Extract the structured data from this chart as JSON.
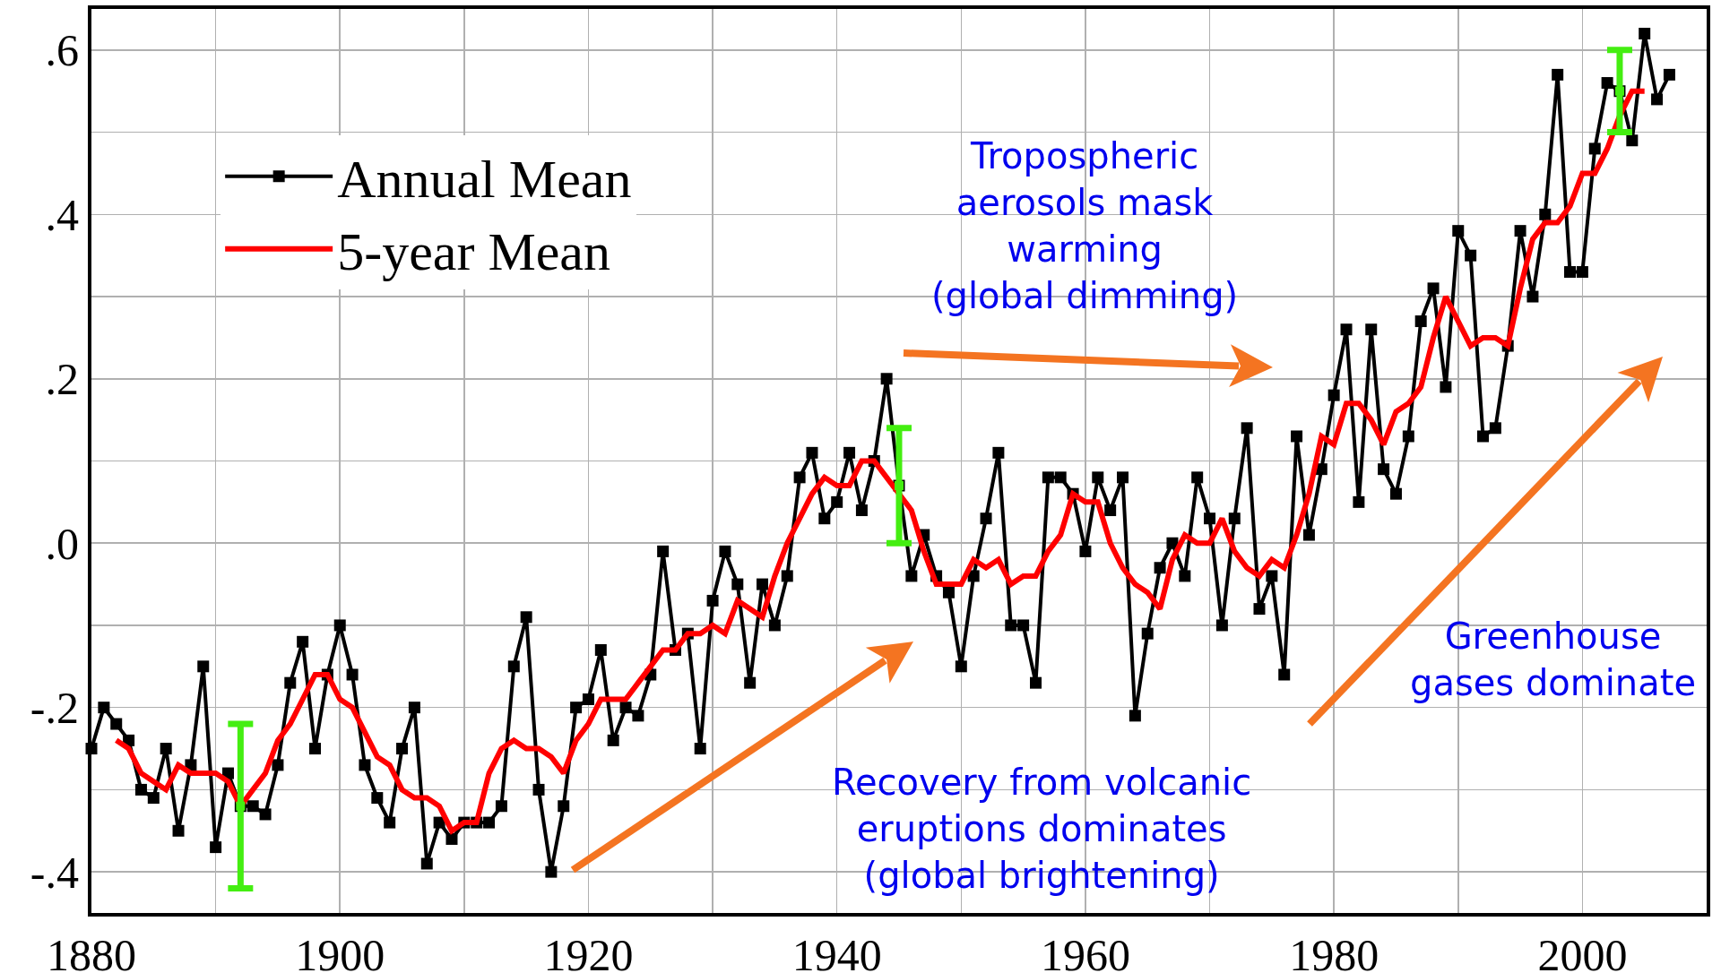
{
  "chart_data": {
    "type": "line",
    "xlim": [
      1880,
      2010
    ],
    "ylim": [
      -0.45,
      0.65
    ],
    "xticks": [
      1880,
      {
        "value": 1890,
        "label": null
      },
      1900,
      {
        "value": 1910,
        "label": null
      },
      1920,
      {
        "value": 1930,
        "label": null
      },
      1940,
      {
        "value": 1950,
        "label": null
      },
      1960,
      {
        "value": 1970,
        "label": null
      },
      1980,
      {
        "value": 1990,
        "label": null
      },
      2000
    ],
    "yticks": [
      {
        "value": -0.4,
        "label": "-.4"
      },
      {
        "value": -0.3,
        "label": null
      },
      {
        "value": -0.2,
        "label": "-.2"
      },
      {
        "value": -0.1,
        "label": null
      },
      {
        "value": 0,
        "label": ".0"
      },
      {
        "value": 0.1,
        "label": null
      },
      {
        "value": 0.2,
        "label": ".2"
      },
      {
        "value": 0.3,
        "label": null
      },
      {
        "value": 0.4,
        "label": ".4"
      },
      {
        "value": 0.5,
        "label": null
      },
      {
        "value": 0.6,
        "label": ".6"
      }
    ],
    "grid": true,
    "legend": "top left",
    "series": [
      {
        "name": "Annual Mean",
        "color": "#000000",
        "marker": "square",
        "x": [
          1880,
          1881,
          1882,
          1883,
          1884,
          1885,
          1886,
          1887,
          1888,
          1889,
          1890,
          1891,
          1892,
          1893,
          1894,
          1895,
          1896,
          1897,
          1898,
          1899,
          1900,
          1901,
          1902,
          1903,
          1904,
          1905,
          1906,
          1907,
          1908,
          1909,
          1910,
          1911,
          1912,
          1913,
          1914,
          1915,
          1916,
          1917,
          1918,
          1919,
          1920,
          1921,
          1922,
          1923,
          1924,
          1925,
          1926,
          1927,
          1928,
          1929,
          1930,
          1931,
          1932,
          1933,
          1934,
          1935,
          1936,
          1937,
          1938,
          1939,
          1940,
          1941,
          1942,
          1943,
          1944,
          1945,
          1946,
          1947,
          1948,
          1949,
          1950,
          1951,
          1952,
          1953,
          1954,
          1955,
          1956,
          1957,
          1958,
          1959,
          1960,
          1961,
          1962,
          1963,
          1964,
          1965,
          1966,
          1967,
          1968,
          1969,
          1970,
          1971,
          1972,
          1973,
          1974,
          1975,
          1976,
          1977,
          1978,
          1979,
          1980,
          1981,
          1982,
          1983,
          1984,
          1985,
          1986,
          1987,
          1988,
          1989,
          1990,
          1991,
          1992,
          1993,
          1994,
          1995,
          1996,
          1997,
          1998,
          1999,
          2000,
          2001,
          2002,
          2003,
          2004,
          2005,
          2006,
          2007
        ],
        "values": [
          -0.25,
          -0.2,
          -0.22,
          -0.24,
          -0.3,
          -0.31,
          -0.25,
          -0.35,
          -0.27,
          -0.15,
          -0.37,
          -0.28,
          -0.32,
          -0.32,
          -0.33,
          -0.27,
          -0.17,
          -0.12,
          -0.25,
          -0.16,
          -0.1,
          -0.16,
          -0.27,
          -0.31,
          -0.34,
          -0.25,
          -0.2,
          -0.39,
          -0.34,
          -0.36,
          -0.34,
          -0.34,
          -0.34,
          -0.32,
          -0.15,
          -0.09,
          -0.3,
          -0.4,
          -0.32,
          -0.2,
          -0.19,
          -0.13,
          -0.24,
          -0.2,
          -0.21,
          -0.16,
          -0.01,
          -0.13,
          -0.11,
          -0.25,
          -0.07,
          -0.01,
          -0.05,
          -0.17,
          -0.05,
          -0.1,
          -0.04,
          0.08,
          0.11,
          0.03,
          0.05,
          0.11,
          0.04,
          0.1,
          0.2,
          0.07,
          -0.04,
          0.01,
          -0.04,
          -0.06,
          -0.15,
          -0.04,
          0.03,
          0.11,
          -0.1,
          -0.1,
          -0.17,
          0.08,
          0.08,
          0.06,
          -0.01,
          0.08,
          0.04,
          0.08,
          -0.21,
          -0.11,
          -0.03,
          0.0,
          -0.04,
          0.08,
          0.03,
          -0.1,
          0.03,
          0.14,
          -0.08,
          -0.04,
          -0.16,
          0.13,
          0.01,
          0.09,
          0.18,
          0.26,
          0.05,
          0.26,
          0.09,
          0.06,
          0.13,
          0.27,
          0.31,
          0.19,
          0.38,
          0.35,
          0.13,
          0.14,
          0.24,
          0.38,
          0.3,
          0.4,
          0.57,
          0.33,
          0.33,
          0.48,
          0.56,
          0.55,
          0.49,
          0.62,
          0.54,
          0.57
        ]
      },
      {
        "name": "5-year Mean",
        "color": "#ff0000",
        "marker": "none",
        "x": [
          1882,
          1883,
          1884,
          1885,
          1886,
          1887,
          1888,
          1889,
          1890,
          1891,
          1892,
          1893,
          1894,
          1895,
          1896,
          1897,
          1898,
          1899,
          1900,
          1901,
          1902,
          1903,
          1904,
          1905,
          1906,
          1907,
          1908,
          1909,
          1910,
          1911,
          1912,
          1913,
          1914,
          1915,
          1916,
          1917,
          1918,
          1919,
          1920,
          1921,
          1922,
          1923,
          1924,
          1925,
          1926,
          1927,
          1928,
          1929,
          1930,
          1931,
          1932,
          1933,
          1934,
          1935,
          1936,
          1937,
          1938,
          1939,
          1940,
          1941,
          1942,
          1943,
          1944,
          1945,
          1946,
          1947,
          1948,
          1949,
          1950,
          1951,
          1952,
          1953,
          1954,
          1955,
          1956,
          1957,
          1958,
          1959,
          1960,
          1961,
          1962,
          1963,
          1964,
          1965,
          1966,
          1967,
          1968,
          1969,
          1970,
          1971,
          1972,
          1973,
          1974,
          1975,
          1976,
          1977,
          1978,
          1979,
          1980,
          1981,
          1982,
          1983,
          1984,
          1985,
          1986,
          1987,
          1988,
          1989,
          1990,
          1991,
          1992,
          1993,
          1994,
          1995,
          1996,
          1997,
          1998,
          1999,
          2000,
          2001,
          2002,
          2003,
          2004,
          2005
        ],
        "values": [
          -0.24,
          -0.25,
          -0.28,
          -0.29,
          -0.3,
          -0.27,
          -0.28,
          -0.28,
          -0.28,
          -0.29,
          -0.32,
          -0.3,
          -0.28,
          -0.24,
          -0.22,
          -0.19,
          -0.16,
          -0.16,
          -0.19,
          -0.2,
          -0.23,
          -0.26,
          -0.27,
          -0.3,
          -0.31,
          -0.31,
          -0.32,
          -0.35,
          -0.34,
          -0.34,
          -0.28,
          -0.25,
          -0.24,
          -0.25,
          -0.25,
          -0.26,
          -0.28,
          -0.24,
          -0.22,
          -0.19,
          -0.19,
          -0.19,
          -0.17,
          -0.15,
          -0.13,
          -0.13,
          -0.11,
          -0.11,
          -0.1,
          -0.11,
          -0.07,
          -0.08,
          -0.09,
          -0.04,
          0.0,
          0.03,
          0.06,
          0.08,
          0.07,
          0.07,
          0.1,
          0.1,
          0.08,
          0.06,
          0.04,
          -0.01,
          -0.05,
          -0.05,
          -0.05,
          -0.02,
          -0.03,
          -0.02,
          -0.05,
          -0.04,
          -0.04,
          -0.01,
          0.01,
          0.06,
          0.05,
          0.05,
          0.0,
          -0.03,
          -0.05,
          -0.06,
          -0.08,
          -0.02,
          0.01,
          0.0,
          0.0,
          0.03,
          -0.01,
          -0.03,
          -0.04,
          -0.02,
          -0.03,
          0.01,
          0.06,
          0.13,
          0.12,
          0.17,
          0.17,
          0.15,
          0.12,
          0.16,
          0.17,
          0.19,
          0.25,
          0.3,
          0.27,
          0.24,
          0.25,
          0.25,
          0.24,
          0.31,
          0.37,
          0.39,
          0.39,
          0.41,
          0.45,
          0.45,
          0.48,
          0.52,
          0.55,
          0.55
        ]
      },
      {
        "type": "scatter",
        "color": "#44ee11",
        "marker": "square",
        "x": [
          1892,
          1945,
          2003
        ],
        "values": [
          -0.32,
          0.07,
          0.55
        ],
        "errors": [
          0.1,
          0.07,
          0.05
        ]
      }
    ],
    "annotations": [
      "Tropospheric\naerosols mask\nwarming\n(global dimming)",
      "Recovery from volcanic\neruptions dominates\n(global brightening)",
      "Greenhouse\ngases dominate"
    ]
  }
}
